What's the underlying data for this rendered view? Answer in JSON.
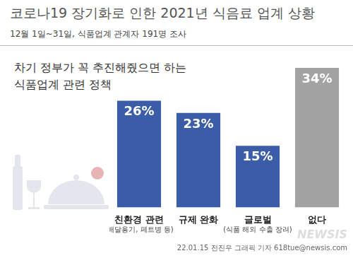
{
  "header": {
    "title": "코로나19 장기화로 인한 2021년 식음료 업계 상황",
    "subtitle": "12월 1일~31일, 식품업계 관계자 191명 조사"
  },
  "chart_data": {
    "type": "bar",
    "title": "차기 정부가 꼭 추진해줬으면 하는 식품업계 관련 정책",
    "categories": [
      "친환경 관련",
      "규제 완화",
      "글로벌",
      "없다"
    ],
    "category_notes": [
      "(배달용기, 페트병 등)",
      null,
      "(식품 해외 수출 장려)",
      null
    ],
    "values": [
      26,
      23,
      15,
      34
    ],
    "value_labels": [
      "26%",
      "23%",
      "15%",
      "34%"
    ],
    "colors": [
      "#3b5ca6",
      "#3b5ca6",
      "#3b5ca6",
      "#a3a3a3"
    ],
    "ylim": [
      0,
      34
    ],
    "grid": false,
    "data_labels": true,
    "tick_labels": "x"
  },
  "footer": {
    "credit": "22.01.15 전진우 그래픽 기자 618tue@newsis.com",
    "logo": "NEWSIS"
  }
}
